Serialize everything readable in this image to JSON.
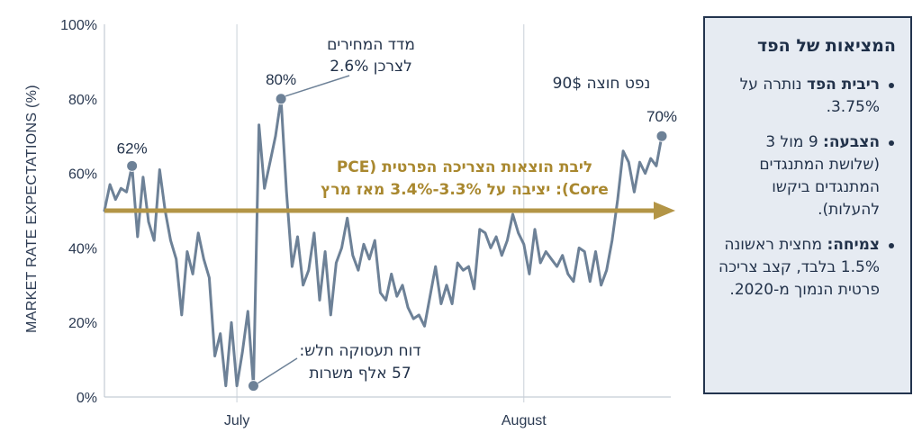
{
  "chart_data": {
    "type": "line",
    "ylabel": "MARKET RATE EXPECTATIONS (%)",
    "ylim": [
      0,
      100
    ],
    "y_ticks": [
      "0%",
      "20%",
      "40%",
      "60%",
      "80%",
      "100%"
    ],
    "y_tick_values": [
      0,
      20,
      40,
      60,
      80,
      100
    ],
    "x_ticks": [
      "July",
      "August"
    ],
    "x_tick_index": [
      24,
      76
    ],
    "grid": "vertical lines at month ticks",
    "series": [
      {
        "color": "#6d8197",
        "values": [
          50,
          57,
          53,
          56,
          55,
          62,
          43,
          59,
          47,
          42,
          61,
          50,
          42,
          37,
          22,
          39,
          33,
          44,
          37,
          32,
          11,
          17,
          3,
          20,
          3,
          12,
          23,
          3,
          73,
          56,
          63,
          70,
          80,
          55,
          35,
          43,
          30,
          34,
          44,
          26,
          39,
          22,
          36,
          40,
          48,
          38,
          34,
          41,
          37,
          42,
          28,
          26,
          33,
          27,
          30,
          24,
          21,
          22,
          19,
          27,
          35,
          25,
          30,
          25,
          36,
          34,
          35,
          29,
          45,
          44,
          40,
          43,
          38,
          42,
          49,
          44,
          41,
          33,
          45,
          36,
          39,
          37,
          35,
          38,
          33,
          31,
          40,
          39,
          31,
          39,
          30,
          34,
          42,
          53,
          66,
          63,
          55,
          63,
          60,
          64,
          62,
          70
        ]
      }
    ],
    "annotations": [
      {
        "text": "62%",
        "index": 5,
        "value": 62
      },
      {
        "text": "80%",
        "index": 32,
        "value": 80
      },
      {
        "text": "70%",
        "index": 101,
        "value": 70
      }
    ],
    "notes": {
      "cpi_line1": "מדד המחירים",
      "cpi_line2": "לצרכן 2.6%",
      "jobs_line1": "דוח תעסוקה חלש:",
      "jobs_line2": "57 אלף משרות",
      "oil": "נפט חוצה 90$"
    },
    "pce_arrow": {
      "value": 50,
      "color": "#b39546",
      "line1": "ליבת הוצאות הצריכה הפרטית (PCE",
      "line2": "Core): יציבה על 3.3%-3.4% מאז מרץ"
    }
  },
  "panel": {
    "title": "המציאות של הפד",
    "items": [
      {
        "lead": "ריבית הפד",
        "text": " נותרה על 3.75%."
      },
      {
        "lead": "הצבעה:",
        "text": " 9 מול 3 (שלושת המתנגדים המתנגדים ביקשו להעלות)."
      },
      {
        "lead": "צמיחה:",
        "text": " מחצית ראשונה 1.5% בלבד, קצב צריכה פרטית הנמוך מ-2020."
      }
    ]
  },
  "colors": {
    "line": "#6d8197",
    "gold": "#b39546",
    "panel_bg": "#e6ebf2",
    "panel_border": "#23344e"
  }
}
